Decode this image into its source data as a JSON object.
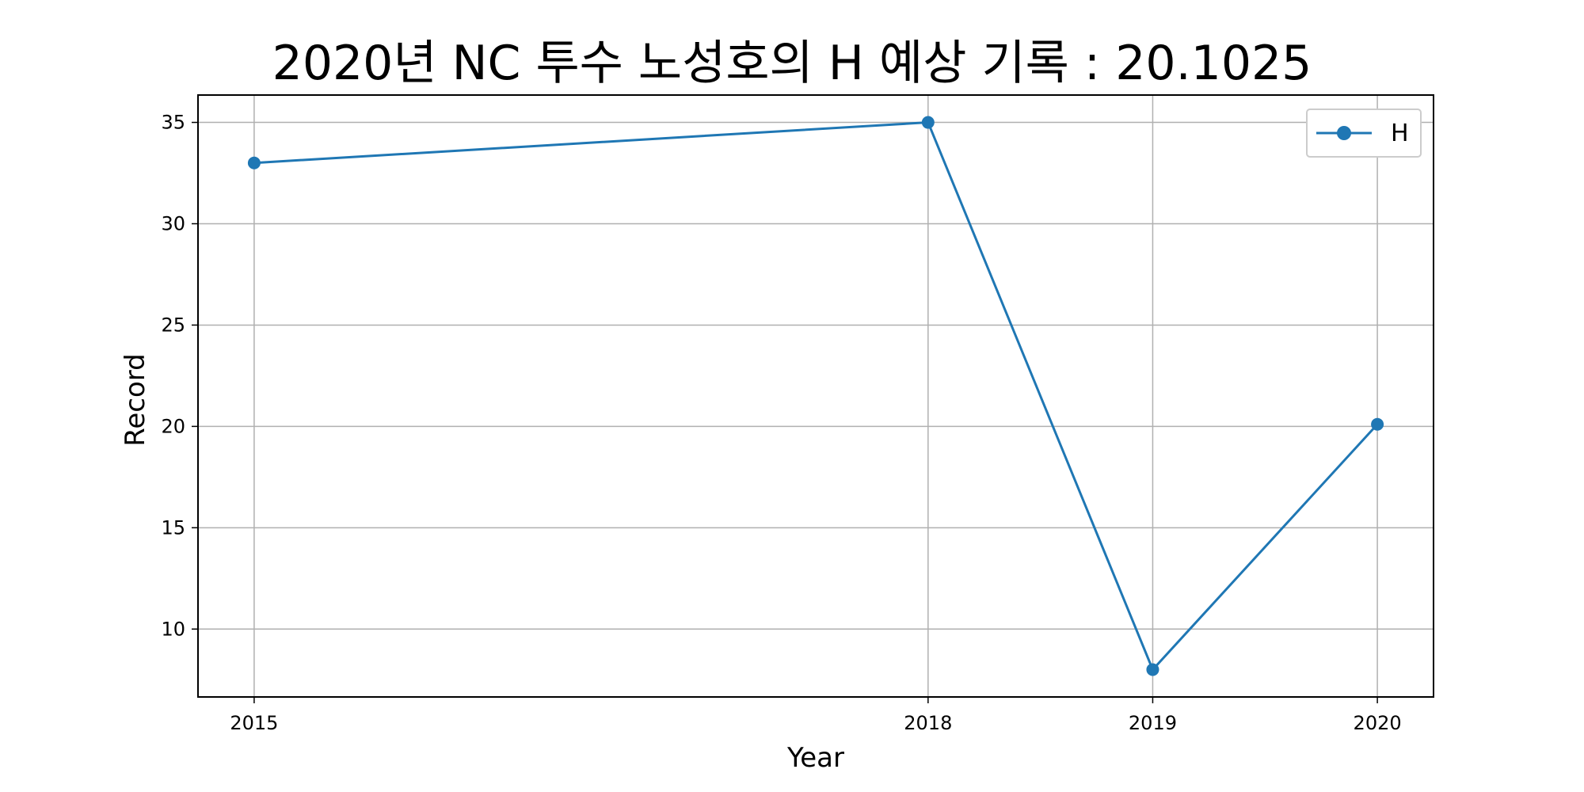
{
  "chart_data": {
    "type": "line",
    "title": "2020년 NC 투수 노성호의 H 예상 기록 : 20.1025",
    "xlabel": "Year",
    "ylabel": "Record",
    "x": [
      2015,
      2018,
      2019,
      2020
    ],
    "x_tick_labels": [
      "2015",
      "2018",
      "2019",
      "2020"
    ],
    "series": [
      {
        "name": "H",
        "values": [
          33,
          35,
          8,
          20.1025
        ],
        "color": "#1f77b4",
        "marker": "circle"
      }
    ],
    "y_ticks": [
      10,
      15,
      20,
      25,
      30,
      35
    ],
    "xlim": [
      2014.75,
      2020.25
    ],
    "ylim": [
      6.65,
      36.35
    ],
    "grid": true,
    "legend_position": "top-right"
  }
}
